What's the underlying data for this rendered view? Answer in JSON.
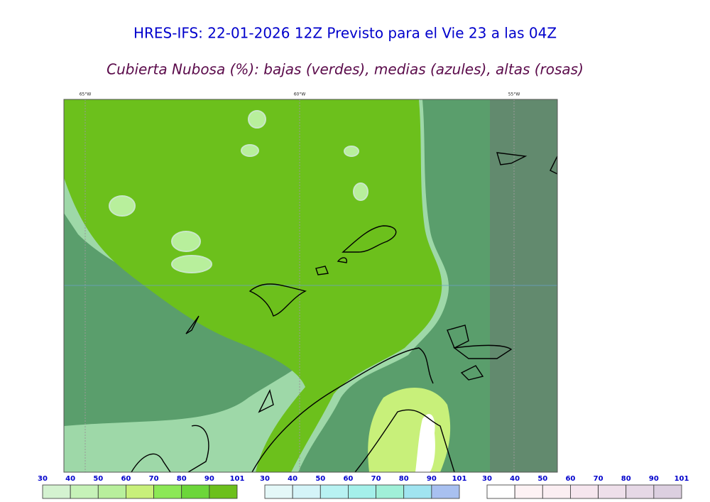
{
  "title": "HRES-IFS: 22-01-2026 12Z Previsto para el Vie 23 a las 04Z",
  "subtitle": "Cubierta Nubosa (%): bajas (verdes), medias (azules), altas (rosas)",
  "map": {
    "longitude_labels": [
      "65°W",
      "60°W",
      "55°W"
    ]
  },
  "colorbars": [
    {
      "ticks": [
        30,
        40,
        50,
        60,
        70,
        80,
        90,
        101
      ],
      "colors": [
        "#d4f2d0",
        "#c6f2b8",
        "#b8ef9c",
        "#c8f07a",
        "#8ce856",
        "#6cd63a",
        "#6cc01c"
      ]
    },
    {
      "ticks": [
        30,
        40,
        50,
        60,
        70,
        80,
        90,
        101
      ],
      "colors": [
        "#e4f8f8",
        "#d4f4f8",
        "#b8f2f2",
        "#a4f0ea",
        "#a0f0d8",
        "#a0e4f0",
        "#a8c0f0"
      ]
    },
    {
      "ticks": [
        30,
        40,
        50,
        60,
        70,
        80,
        90,
        101
      ],
      "colors": [
        "#ffffff",
        "#fdf2f4",
        "#fbeef2",
        "#f6e6ee",
        "#eedfea",
        "#e6d8e6",
        "#dccfe0"
      ]
    }
  ]
}
